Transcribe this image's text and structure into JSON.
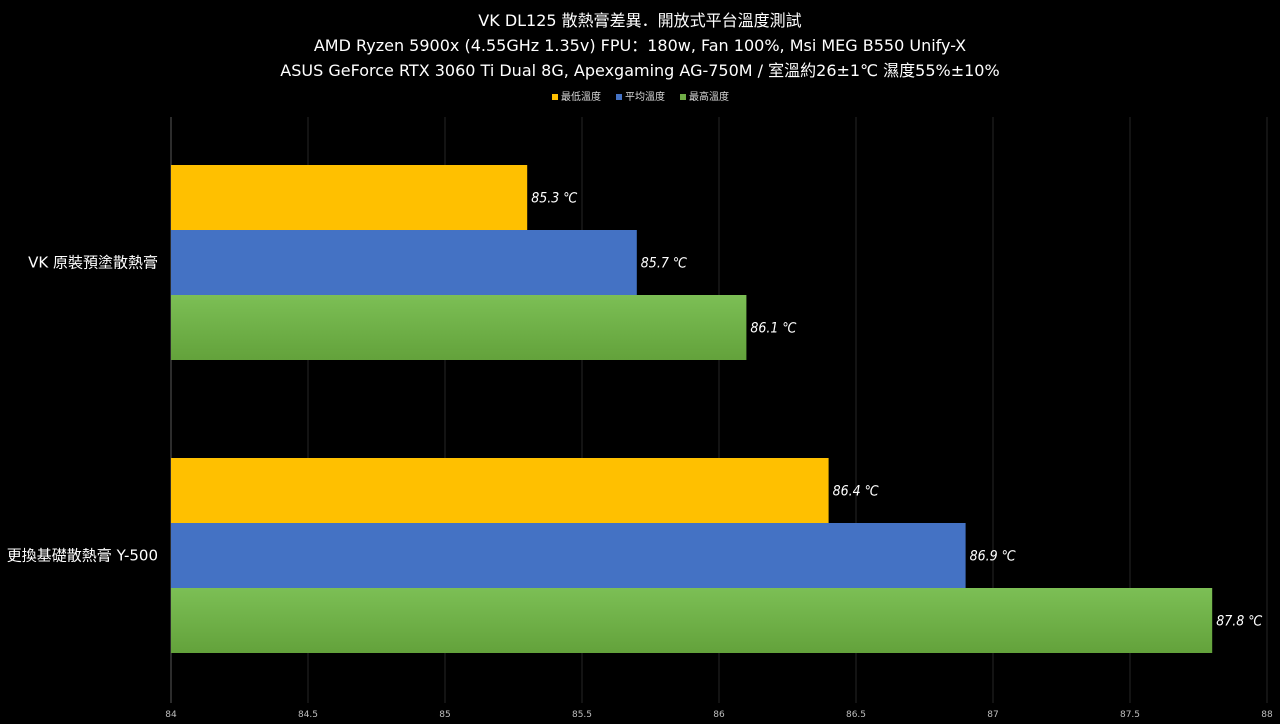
{
  "chart_data": {
    "type": "bar",
    "orientation": "horizontal",
    "title": [
      "VK DL125 散熱膏差異．開放式平台溫度測試",
      "AMD Ryzen 5900x (4.55GHz 1.35v) FPU：180w, Fan 100%, Msi MEG B550 Unify-X",
      "ASUS GeForce RTX 3060 Ti Dual 8G, Apexgaming AG-750M / 室溫約26±1℃ 濕度55%±10%"
    ],
    "categories": [
      "VK 原裝預塗散熱膏",
      "更換基礎散熱膏 Y-500"
    ],
    "series": [
      {
        "name": "最低溫度",
        "color": "#ffc000",
        "values": [
          85.3,
          86.4
        ],
        "labels": [
          "85.3 ℃",
          "86.4 ℃"
        ]
      },
      {
        "name": "平均溫度",
        "color": "#4472c4",
        "values": [
          85.7,
          86.9
        ],
        "labels": [
          "85.7 ℃",
          "86.9 ℃"
        ]
      },
      {
        "name": "最高溫度",
        "color": "#70ad47",
        "values": [
          86.1,
          87.8
        ],
        "labels": [
          "86.1 ℃",
          "87.8 ℃"
        ]
      }
    ],
    "xlim": [
      84,
      88
    ],
    "xticks": [
      "84",
      "84.5",
      "85",
      "85.5",
      "86",
      "86.5",
      "87",
      "87.5",
      "88"
    ],
    "grid": true,
    "legend": "top-center"
  }
}
